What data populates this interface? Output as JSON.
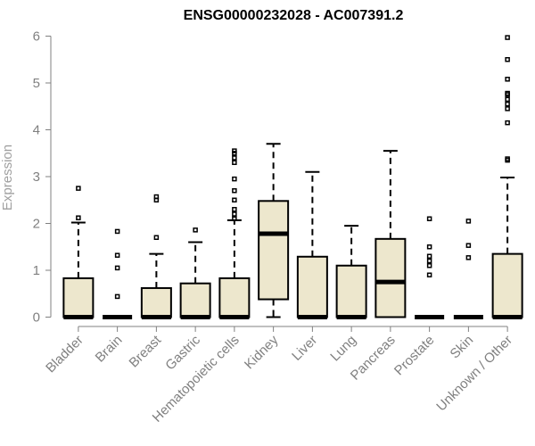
{
  "chart_data": {
    "type": "box",
    "title": "ENSG00000232028 - AC007391.2",
    "xlabel": "",
    "ylabel": "Expression",
    "ylim": [
      0,
      6
    ],
    "yticks": [
      "0",
      "1",
      "2",
      "3",
      "4",
      "5",
      "6"
    ],
    "grid": false,
    "colors": {
      "box_fill": "#ede7cd",
      "box_stroke": "#000000",
      "axis": "#808080"
    },
    "categories": [
      "Bladder",
      "Brain",
      "Breast",
      "Gastric",
      "Hematopoietic cells",
      "Kidney",
      "Liver",
      "Lung",
      "Pancreas",
      "Prostate",
      "Skin",
      "Unknown / Other"
    ],
    "boxes": [
      {
        "min": 0,
        "q1": 0,
        "median": 0,
        "q3": 0.83,
        "max": 2.02,
        "outliers": [
          2.12,
          2.75
        ]
      },
      {
        "min": 0,
        "q1": 0,
        "median": 0,
        "q3": 0,
        "max": 0,
        "outliers": [
          0.44,
          1.05,
          1.32,
          1.83
        ]
      },
      {
        "min": 0,
        "q1": 0,
        "median": 0,
        "q3": 0.62,
        "max": 1.35,
        "outliers": [
          1.7,
          2.5,
          2.57
        ]
      },
      {
        "min": 0,
        "q1": 0,
        "median": 0,
        "q3": 0.72,
        "max": 1.6,
        "outliers": [
          1.86
        ]
      },
      {
        "min": 0,
        "q1": 0,
        "median": 0,
        "q3": 0.83,
        "max": 2.07,
        "outliers": [
          2.1,
          2.2,
          2.3,
          2.5,
          2.7,
          2.95,
          3.3,
          3.4,
          3.5,
          3.55
        ]
      },
      {
        "min": 0,
        "q1": 0.38,
        "median": 1.78,
        "q3": 2.48,
        "max": 3.7,
        "outliers": []
      },
      {
        "min": 0,
        "q1": 0,
        "median": 0,
        "q3": 1.29,
        "max": 3.1,
        "outliers": []
      },
      {
        "min": 0,
        "q1": 0,
        "median": 0,
        "q3": 1.1,
        "max": 1.95,
        "outliers": []
      },
      {
        "min": 0,
        "q1": 0,
        "median": 0.75,
        "q3": 1.67,
        "max": 3.55,
        "outliers": []
      },
      {
        "min": 0,
        "q1": 0,
        "median": 0,
        "q3": 0,
        "max": 0,
        "outliers": [
          0.9,
          1.1,
          1.2,
          1.3,
          1.5,
          2.1
        ]
      },
      {
        "min": 0,
        "q1": 0,
        "median": 0,
        "q3": 0,
        "max": 0,
        "outliers": [
          1.27,
          1.53,
          2.05
        ]
      },
      {
        "min": 0,
        "q1": 0,
        "median": 0,
        "q3": 1.35,
        "max": 2.98,
        "outliers": [
          3.35,
          3.38,
          4.15,
          4.45,
          4.55,
          4.65,
          4.75,
          4.78,
          5.08,
          5.5,
          5.97
        ]
      }
    ]
  }
}
